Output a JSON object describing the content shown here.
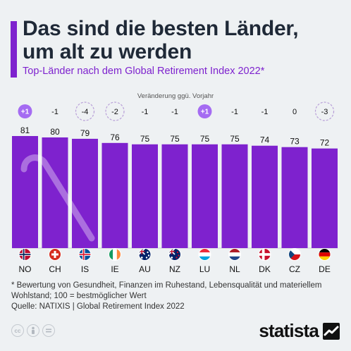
{
  "header": {
    "title_line1": "Das sind die besten Länder,",
    "title_line2": "um alt zu werden",
    "subtitle": "Top-Länder nach dem Global Retirement Index 2022*"
  },
  "change_caption": "Veränderung ggü. Vorjahr",
  "colors": {
    "accent": "#7e22ce",
    "bar": "#7e22ce",
    "text": "#1f2937",
    "background": "#eef1f3"
  },
  "chart_data": {
    "type": "bar",
    "categories": [
      "NO",
      "CH",
      "IS",
      "IE",
      "AU",
      "NZ",
      "LU",
      "NL",
      "DK",
      "CZ",
      "DE"
    ],
    "values": [
      81,
      80,
      79,
      76,
      75,
      75,
      75,
      75,
      74,
      73,
      72
    ],
    "changes": [
      "+1",
      "-1",
      "-4",
      "-2",
      "-1",
      "-1",
      "+1",
      "-1",
      "-1",
      "0",
      "-3"
    ],
    "flags": [
      "norway-flag",
      "switzerland-flag",
      "iceland-flag",
      "ireland-flag",
      "australia-flag",
      "new-zealand-flag",
      "luxembourg-flag",
      "netherlands-flag",
      "denmark-flag",
      "czech-flag",
      "germany-flag"
    ],
    "ylim": [
      0,
      81
    ],
    "grid": false,
    "legend": "none"
  },
  "footer": {
    "footnote": "* Bewertung von Gesundheit, Finanzen im Ruhestand, Lebensqualität und materiellem Wohlstand; 100 = bestmöglicher Wert",
    "source": "Quelle: NATIXIS | Global Retirement Index 2022",
    "brand": "statista",
    "license_icons": [
      "cc-icon",
      "attribution-icon",
      "no-derivatives-icon"
    ]
  }
}
